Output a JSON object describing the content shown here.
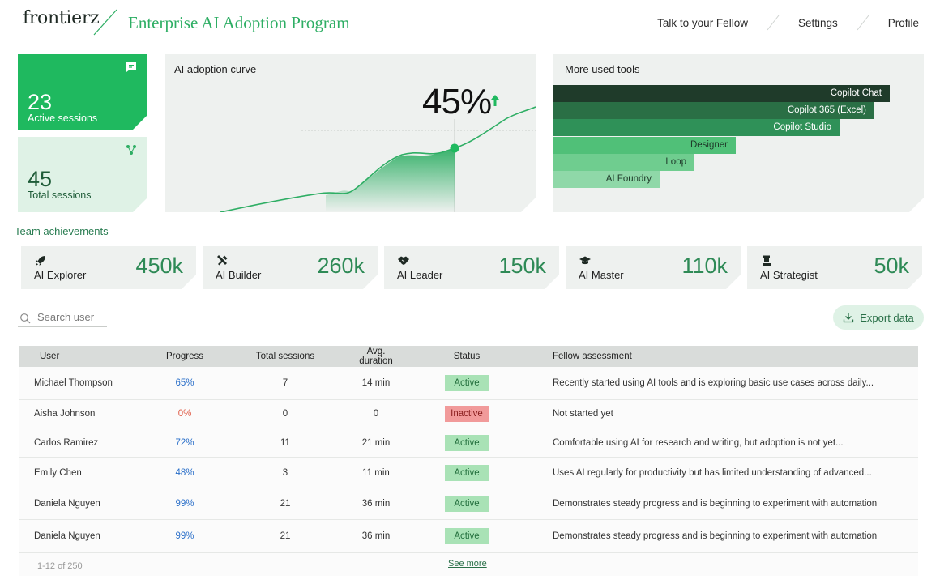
{
  "header": {
    "logo": "frontierz",
    "program_title": "Enterprise AI Adoption Program",
    "nav": [
      "Talk to your Fellow",
      "Settings",
      "Profile"
    ]
  },
  "stats": {
    "active": {
      "value": "23",
      "label": "Active sessions"
    },
    "total": {
      "value": "45",
      "label": "Total sessions"
    }
  },
  "curve": {
    "title": "AI adoption curve",
    "percent": "45%"
  },
  "tools": {
    "title": "More used tools",
    "items": [
      "Copilot Chat",
      "Copilot 365 (Excel)",
      "Copilot Studio",
      "Designer",
      "Loop",
      "AI Foundry"
    ]
  },
  "achievements": {
    "title": "Team achievements",
    "items": [
      {
        "label": "AI Explorer",
        "value": "450k",
        "icon": "rocket-icon"
      },
      {
        "label": "AI Builder",
        "value": "260k",
        "icon": "tools-icon"
      },
      {
        "label": "AI Leader",
        "value": "150k",
        "icon": "handshake-icon"
      },
      {
        "label": "AI Master",
        "value": "110k",
        "icon": "graduation-cap-icon"
      },
      {
        "label": "AI Strategist",
        "value": "50k",
        "icon": "chess-icon"
      }
    ]
  },
  "search": {
    "placeholder": "Search user"
  },
  "export": {
    "label": "Export data"
  },
  "table": {
    "headers": [
      "User",
      "Progress",
      "Total sessions",
      "Avg. duration",
      "Status",
      "Fellow assessment"
    ],
    "rows": [
      {
        "user": "Michael Thompson",
        "progress": "65%",
        "sessions": "7",
        "duration": "14 min",
        "status": "Active",
        "assessment": "Recently started using AI tools and is exploring basic use cases across daily..."
      },
      {
        "user": "Aisha Johnson",
        "progress": "0%",
        "sessions": "0",
        "duration": "0",
        "status": "Inactive",
        "assessment": "Not started yet"
      },
      {
        "user": "Carlos Ramirez",
        "progress": "72%",
        "sessions": "11",
        "duration": "21 min",
        "status": "Active",
        "assessment": "Comfortable using AI for research and writing, but adoption is not yet..."
      },
      {
        "user": "Emily Chen",
        "progress": "48%",
        "sessions": "3",
        "duration": "11 min",
        "status": "Active",
        "assessment": "Uses AI regularly for productivity but has limited understanding of advanced..."
      },
      {
        "user": "Daniela Nguyen",
        "progress": "99%",
        "sessions": "21",
        "duration": "36 min",
        "status": "Active",
        "assessment": "Demonstrates steady progress and is beginning to experiment with automation"
      },
      {
        "user": "Daniela Nguyen",
        "progress": "99%",
        "sessions": "21",
        "duration": "36 min",
        "status": "Active",
        "assessment": "Demonstrates steady progress and is beginning to experiment with automation"
      }
    ],
    "pager": "1-12 of 250",
    "see_more": "See more"
  },
  "colors": {
    "accent": "#1fb95f",
    "title_green": "#2eae64",
    "badge_active": "#a9e2b6",
    "badge_inactive": "#f19a9a",
    "progress_blue": "#2a6fc9",
    "progress_red": "#e0604c"
  }
}
